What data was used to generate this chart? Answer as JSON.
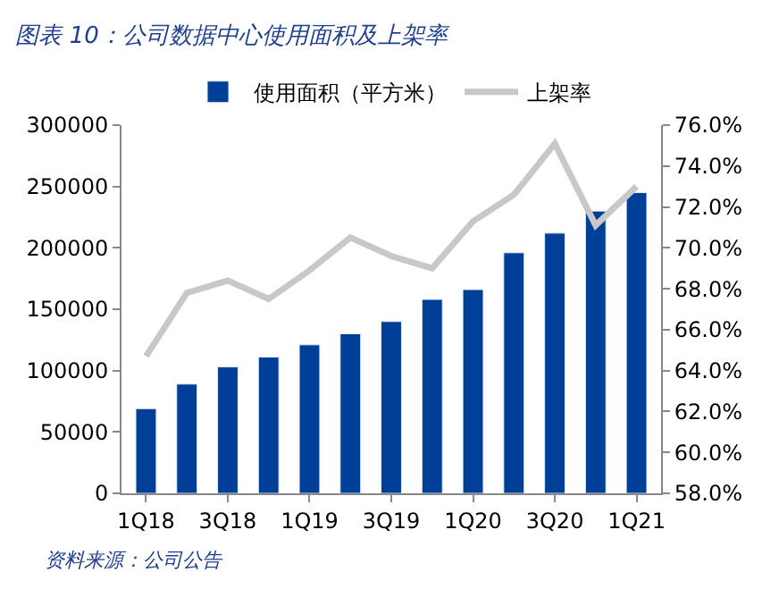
{
  "chart_data": {
    "type": "bar",
    "title": "图表 10：公司数据中心使用面积及上架率",
    "categories": [
      "1Q18",
      null,
      "3Q18",
      null,
      "1Q19",
      null,
      "3Q19",
      null,
      "1Q20",
      null,
      "3Q20",
      null,
      "1Q21"
    ],
    "series": [
      {
        "name": "使用面积（平方米）",
        "color": "#003f98",
        "values": [
          69000,
          89000,
          103000,
          111000,
          121000,
          130000,
          140000,
          158000,
          166000,
          196000,
          212000,
          230000,
          245000
        ]
      },
      {
        "name": "上架率",
        "type": "line",
        "axis": "y2",
        "color": "#c8c8c8",
        "marker": "none",
        "line_style": "solid",
        "values": [
          64.7,
          67.8,
          68.4,
          67.5,
          68.9,
          70.5,
          69.6,
          69.0,
          71.3,
          72.6,
          75.1,
          71.1,
          73.0
        ]
      }
    ],
    "ylim": [
      0,
      300000
    ],
    "yticks": [
      0,
      50000,
      100000,
      150000,
      200000,
      250000,
      300000
    ],
    "y2lim": [
      58,
      76
    ],
    "y2ticks": [
      {
        "value": 58,
        "label": "58.0%"
      },
      {
        "value": 60,
        "label": "60.0%"
      },
      {
        "value": 62,
        "label": "62.0%"
      },
      {
        "value": 64,
        "label": "64.0%"
      },
      {
        "value": 66,
        "label": "66.0%"
      },
      {
        "value": 68,
        "label": "68.0%"
      },
      {
        "value": 70,
        "label": "70.0%"
      },
      {
        "value": 72,
        "label": "72.0%"
      },
      {
        "value": 74,
        "label": "74.0%"
      },
      {
        "value": 76,
        "label": "76.0%"
      }
    ],
    "legend": "top",
    "annotations": [
      "资料来源：公司公告"
    ]
  }
}
